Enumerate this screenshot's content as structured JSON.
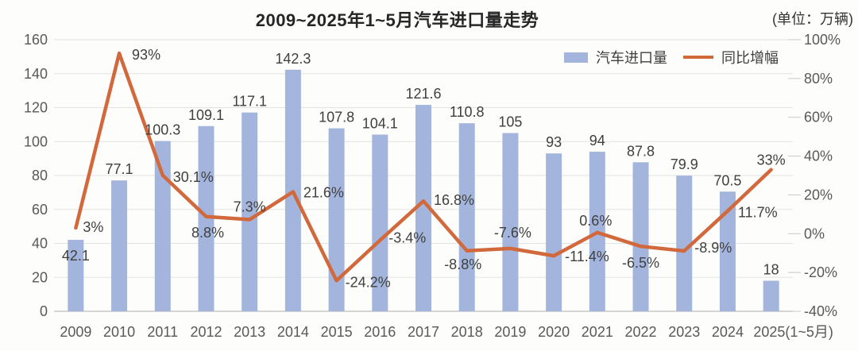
{
  "title": "2009~2025年1~5月汽车进口量走势",
  "unit_label": "(单位：万辆)",
  "colors": {
    "bar": "#a3b5dc",
    "line": "#d2693c",
    "grid": "#e3e3e3",
    "axis_line": "#c9c9c9",
    "tick_text": "#595959",
    "data_label_text": "#3f3f3f"
  },
  "legend": {
    "items": [
      {
        "label": "汽车进口量",
        "marker": "bar-swatch"
      },
      {
        "label": "同比增幅",
        "marker": "line-swatch"
      }
    ]
  },
  "chart_data": {
    "type": "bar",
    "subtype": "bar+line combo, dual axis",
    "title": "2009~2025年1~5月汽车进口量走势",
    "unit": "万辆",
    "categories": [
      "2009",
      "2010",
      "2011",
      "2012",
      "2013",
      "2014",
      "2015",
      "2016",
      "2017",
      "2018",
      "2019",
      "2020",
      "2021",
      "2022",
      "2023",
      "2024",
      "2025(1~5月)"
    ],
    "series": [
      {
        "name": "汽车进口量",
        "type": "bar",
        "axis": "left",
        "color": "#a3b5dc",
        "values": [
          42.1,
          77.1,
          100.3,
          109.1,
          117.1,
          142.3,
          107.8,
          104.1,
          121.6,
          110.8,
          105,
          93,
          94,
          87.8,
          79.9,
          70.5,
          18
        ],
        "labels": [
          "42.1",
          "77.1",
          "100.3",
          "109.1",
          "117.1",
          "142.3",
          "107.8",
          "104.1",
          "121.6",
          "110.8",
          "105",
          "93",
          "94",
          "87.8",
          "79.9",
          "70.5",
          "18"
        ]
      },
      {
        "name": "同比增幅",
        "type": "line",
        "axis": "right",
        "color": "#d2693c",
        "values": [
          3,
          93,
          30.1,
          8.8,
          7.3,
          21.6,
          -24.2,
          -3.4,
          16.8,
          -8.8,
          -7.6,
          -11.4,
          0.6,
          -6.5,
          -8.9,
          11.7,
          33
        ],
        "labels": [
          "3%",
          "93%",
          "30.1%",
          "8.8%",
          "7.3%",
          "21.6%",
          "-24.2%",
          "-3.4%",
          "16.8%",
          "-8.8%",
          "-7.6%",
          "-11.4%",
          "0.6%",
          "-6.5%",
          "-8.9%",
          "11.7%",
          "33%"
        ]
      }
    ],
    "left_axis": {
      "min": 0,
      "max": 160,
      "step": 20,
      "ticks": [
        "0",
        "20",
        "40",
        "60",
        "80",
        "100",
        "120",
        "140",
        "160"
      ]
    },
    "right_axis": {
      "min": -40,
      "max": 100,
      "step": 20,
      "ticks": [
        "-40%",
        "-20%",
        "0%",
        "20%",
        "40%",
        "60%",
        "80%",
        "100%"
      ]
    },
    "grid": "horizontal",
    "legend_position": "top-right"
  }
}
